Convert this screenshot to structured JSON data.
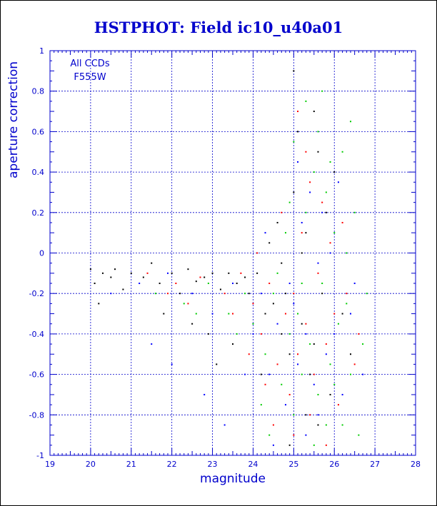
{
  "chart_data": {
    "type": "scatter",
    "title": "HSTPHOT: Field ic10_u40a01",
    "xlabel": "magnitude",
    "ylabel": "aperture correction",
    "xlim": [
      19,
      28
    ],
    "ylim": [
      -1,
      1
    ],
    "xticks": [
      "19",
      "20",
      "21",
      "22",
      "23",
      "24",
      "25",
      "26",
      "27",
      "28"
    ],
    "yticks": [
      "-1",
      "-0.8",
      "-0.6",
      "-0.4",
      "-0.2",
      "0",
      "0.2",
      "0.4",
      "0.6",
      "0.8",
      "1"
    ],
    "grid": true,
    "annotations": [
      "All CCDs",
      "F555W"
    ],
    "series": [
      {
        "color": "#000000",
        "values": [
          [
            20.0,
            -0.08
          ],
          [
            20.1,
            -0.15
          ],
          [
            20.3,
            -0.1
          ],
          [
            20.5,
            -0.12
          ],
          [
            20.6,
            -0.08
          ],
          [
            20.8,
            -0.18
          ],
          [
            21.0,
            -0.1
          ],
          [
            21.3,
            -0.12
          ],
          [
            21.5,
            -0.05
          ],
          [
            21.7,
            -0.15
          ],
          [
            22.0,
            -0.1
          ],
          [
            22.2,
            -0.2
          ],
          [
            22.4,
            -0.08
          ],
          [
            22.6,
            -0.14
          ],
          [
            22.8,
            -0.12
          ],
          [
            23.0,
            -0.1
          ],
          [
            23.2,
            -0.18
          ],
          [
            23.4,
            -0.1
          ],
          [
            23.6,
            -0.15
          ],
          [
            23.8,
            -0.12
          ],
          [
            23.9,
            -0.2
          ],
          [
            24.1,
            -0.1
          ],
          [
            24.3,
            -0.3
          ],
          [
            24.5,
            -0.25
          ],
          [
            24.7,
            -0.4
          ],
          [
            24.8,
            -0.2
          ],
          [
            24.9,
            -0.5
          ],
          [
            25.0,
            0.3
          ],
          [
            25.1,
            0.6
          ],
          [
            25.2,
            -0.35
          ],
          [
            25.3,
            0.1
          ],
          [
            25.4,
            -0.6
          ],
          [
            25.5,
            -0.45
          ],
          [
            25.6,
            0.5
          ],
          [
            25.7,
            -0.2
          ],
          [
            25.8,
            0.2
          ],
          [
            25.9,
            -0.7
          ],
          [
            26.0,
            0.4
          ],
          [
            26.2,
            -0.3
          ],
          [
            26.4,
            -0.5
          ],
          [
            24.6,
            0.15
          ],
          [
            25.0,
            0.9
          ],
          [
            24.2,
            -0.6
          ],
          [
            23.5,
            -0.45
          ],
          [
            22.5,
            -0.35
          ],
          [
            21.8,
            -0.3
          ],
          [
            20.2,
            -0.25
          ],
          [
            25.3,
            -0.8
          ],
          [
            24.9,
            -0.95
          ],
          [
            25.6,
            -0.85
          ],
          [
            23.1,
            -0.55
          ],
          [
            22.9,
            -0.4
          ],
          [
            24.4,
            0.05
          ],
          [
            25.2,
            0.0
          ],
          [
            25.5,
            0.7
          ],
          [
            24.7,
            -0.05
          ]
        ]
      },
      {
        "color": "#ff0000",
        "values": [
          [
            21.4,
            -0.1
          ],
          [
            22.1,
            -0.15
          ],
          [
            22.7,
            -0.12
          ],
          [
            23.3,
            -0.2
          ],
          [
            23.7,
            -0.1
          ],
          [
            24.0,
            -0.25
          ],
          [
            24.2,
            -0.4
          ],
          [
            24.4,
            -0.15
          ],
          [
            24.6,
            -0.55
          ],
          [
            24.8,
            -0.3
          ],
          [
            24.9,
            -0.7
          ],
          [
            25.0,
            -0.2
          ],
          [
            25.1,
            -0.5
          ],
          [
            25.2,
            0.1
          ],
          [
            25.3,
            -0.35
          ],
          [
            25.4,
            0.35
          ],
          [
            25.5,
            -0.6
          ],
          [
            25.6,
            -0.1
          ],
          [
            25.7,
            0.25
          ],
          [
            25.8,
            -0.45
          ],
          [
            25.9,
            0.05
          ],
          [
            26.0,
            -0.3
          ],
          [
            26.1,
            -0.75
          ],
          [
            26.3,
            -0.2
          ],
          [
            26.5,
            -0.55
          ],
          [
            24.5,
            -0.85
          ],
          [
            25.0,
            -0.9
          ],
          [
            25.3,
            0.5
          ],
          [
            24.7,
            0.2
          ],
          [
            23.9,
            -0.5
          ],
          [
            22.4,
            -0.25
          ],
          [
            21.9,
            -0.2
          ],
          [
            25.4,
            -0.8
          ],
          [
            26.2,
            0.15
          ],
          [
            24.3,
            -0.65
          ],
          [
            25.8,
            -0.95
          ],
          [
            24.1,
            0.0
          ],
          [
            23.5,
            -0.3
          ],
          [
            25.1,
            0.7
          ],
          [
            26.6,
            -0.4
          ]
        ]
      },
      {
        "color": "#00cc00",
        "values": [
          [
            21.6,
            -0.2
          ],
          [
            22.3,
            -0.25
          ],
          [
            22.9,
            -0.15
          ],
          [
            23.4,
            -0.3
          ],
          [
            23.8,
            -0.2
          ],
          [
            24.0,
            -0.35
          ],
          [
            24.3,
            -0.5
          ],
          [
            24.5,
            -0.2
          ],
          [
            24.7,
            -0.65
          ],
          [
            24.9,
            -0.4
          ],
          [
            25.0,
            -0.8
          ],
          [
            25.1,
            -0.3
          ],
          [
            25.2,
            -0.6
          ],
          [
            25.3,
            0.2
          ],
          [
            25.4,
            -0.45
          ],
          [
            25.5,
            0.4
          ],
          [
            25.6,
            -0.7
          ],
          [
            25.7,
            -0.15
          ],
          [
            25.8,
            0.3
          ],
          [
            25.9,
            -0.55
          ],
          [
            26.0,
            0.1
          ],
          [
            26.1,
            -0.35
          ],
          [
            26.2,
            -0.85
          ],
          [
            26.3,
            -0.25
          ],
          [
            26.4,
            -0.6
          ],
          [
            26.5,
            0.2
          ],
          [
            26.6,
            -0.9
          ],
          [
            25.3,
            0.75
          ],
          [
            25.6,
            0.6
          ],
          [
            25.9,
            0.45
          ],
          [
            26.2,
            0.5
          ],
          [
            24.8,
            0.1
          ],
          [
            24.4,
            -0.9
          ],
          [
            25.5,
            -0.95
          ],
          [
            26.7,
            -0.45
          ],
          [
            26.8,
            -0.2
          ],
          [
            24.6,
            -0.1
          ],
          [
            23.6,
            -0.4
          ],
          [
            22.6,
            -0.3
          ],
          [
            25.0,
            0.55
          ],
          [
            25.7,
            0.8
          ],
          [
            26.4,
            0.65
          ],
          [
            24.2,
            -0.75
          ],
          [
            25.2,
            -0.15
          ],
          [
            26.0,
            -0.65
          ],
          [
            25.8,
            -0.85
          ],
          [
            24.9,
            0.25
          ],
          [
            26.3,
            0.0
          ]
        ]
      },
      {
        "color": "#0000ff",
        "values": [
          [
            20.5,
            -0.2
          ],
          [
            21.2,
            -0.15
          ],
          [
            21.9,
            -0.1
          ],
          [
            22.5,
            -0.2
          ],
          [
            23.0,
            -0.3
          ],
          [
            23.5,
            -0.15
          ],
          [
            24.0,
            -0.4
          ],
          [
            24.2,
            -0.2
          ],
          [
            24.4,
            -0.6
          ],
          [
            24.6,
            -0.35
          ],
          [
            24.8,
            -0.75
          ],
          [
            25.0,
            -0.25
          ],
          [
            25.1,
            -0.55
          ],
          [
            25.2,
            0.15
          ],
          [
            25.3,
            -0.4
          ],
          [
            25.4,
            0.3
          ],
          [
            25.5,
            -0.65
          ],
          [
            25.6,
            -0.05
          ],
          [
            25.7,
            0.2
          ],
          [
            25.8,
            -0.5
          ],
          [
            25.9,
            0.0
          ],
          [
            26.0,
            -0.4
          ],
          [
            26.2,
            -0.7
          ],
          [
            26.4,
            -0.3
          ],
          [
            26.7,
            -0.6
          ],
          [
            22.0,
            -0.55
          ],
          [
            22.8,
            -0.7
          ],
          [
            23.3,
            -0.85
          ],
          [
            24.5,
            -0.95
          ],
          [
            25.3,
            -0.9
          ],
          [
            25.1,
            0.45
          ],
          [
            24.3,
            0.1
          ],
          [
            21.5,
            -0.45
          ],
          [
            26.1,
            0.35
          ],
          [
            24.9,
            -0.15
          ],
          [
            23.8,
            -0.6
          ],
          [
            25.6,
            -0.8
          ],
          [
            26.5,
            -0.15
          ]
        ]
      }
    ]
  }
}
